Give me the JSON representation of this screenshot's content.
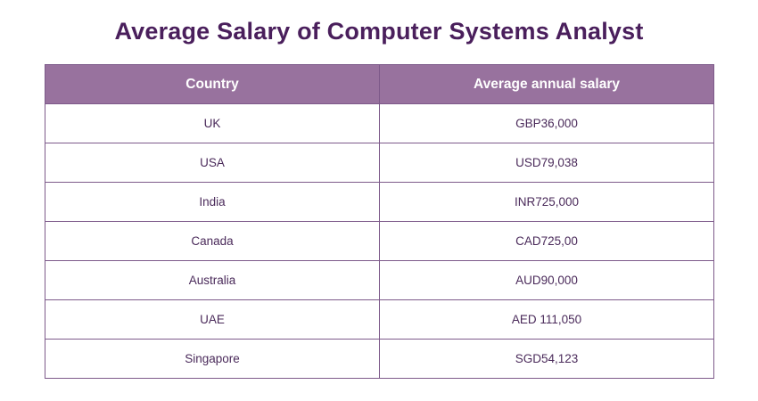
{
  "title": "Average Salary of Computer Systems Analyst",
  "table": {
    "headers": [
      "Country",
      "Average annual salary"
    ],
    "rows": [
      [
        "UK",
        "GBP36,000"
      ],
      [
        "USA",
        "USD79,038"
      ],
      [
        "India",
        "INR725,000"
      ],
      [
        "Canada",
        "CAD725,00"
      ],
      [
        "Australia",
        "AUD90,000"
      ],
      [
        "UAE",
        "AED 111,050"
      ],
      [
        "Singapore",
        "SGD54,123"
      ]
    ]
  },
  "colors": {
    "title": "#4a1f5c",
    "header_bg": "#98729e",
    "header_text": "#ffffff",
    "border": "#7d5a8a",
    "cell_text": "#4a2a5a"
  }
}
